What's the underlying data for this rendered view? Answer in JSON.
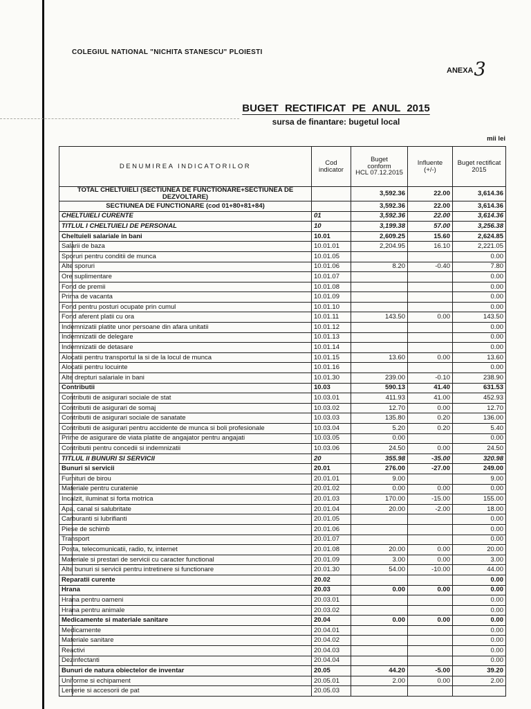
{
  "page": {
    "org_name": "COLEGIUL NATIONAL \"NICHITA STANESCU\" PLOIESTI",
    "anexa_label": "ANEXA",
    "anexa_number": "3",
    "title": "BUGET RECTIFICAT PE ANUL 2015",
    "subtitle": "sursa de finantare: bugetul local",
    "unit_label": "mii lei"
  },
  "table": {
    "headers": {
      "name": "DENUMIREA  INDICATORILOR",
      "code": "Cod\nindicator",
      "budget": "Buget\nconform\nHCL 07.12.2015",
      "influente": "Influente\n(+/-)",
      "rectificat": "Buget rectificat\n2015"
    },
    "rows": [
      {
        "name": "TOTAL CHELTUIELI  (SECTIUNEA DE FUNCTIONARE+SECTIUNEA DE DEZVOLTARE)",
        "code": "",
        "b": "3,592.36",
        "i": "22.00",
        "r": "3,614.36",
        "style": "total"
      },
      {
        "name": "SECTIUNEA DE FUNCTIONARE (cod 01+80+81+84)",
        "code": "",
        "b": "3,592.36",
        "i": "22.00",
        "r": "3,614.36",
        "style": "center"
      },
      {
        "name": "CHELTUIELI CURENTE",
        "code": "01",
        "b": "3,592.36",
        "i": "22.00",
        "r": "3,614.36",
        "style": "italic"
      },
      {
        "name": "TITLUL I  CHELTUIELI DE PERSONAL",
        "code": "10",
        "b": "3,199.38",
        "i": "57.00",
        "r": "3,256.38",
        "style": "italic"
      },
      {
        "name": "Cheltuieli salariale in bani",
        "code": "10.01",
        "b": "2,609.25",
        "i": "15.60",
        "r": "2,624.85",
        "style": "group"
      },
      {
        "name": "Salarii de baza",
        "code": "10.01.01",
        "b": "2,204.95",
        "i": "16.10",
        "r": "2,221.05",
        "style": "item"
      },
      {
        "name": "Sporuri pentru conditii de munca",
        "code": "10.01.05",
        "b": "",
        "i": "",
        "r": "0.00",
        "style": "item"
      },
      {
        "name": "Alte sporuri",
        "code": "10.01.06",
        "b": "8.20",
        "i": "-0.40",
        "r": "7.80",
        "style": "item"
      },
      {
        "name": "Ore suplimentare",
        "code": "10.01.07",
        "b": "",
        "i": "",
        "r": "0.00",
        "style": "item"
      },
      {
        "name": "Fond de premii",
        "code": "10.01.08",
        "b": "",
        "i": "",
        "r": "0.00",
        "style": "item"
      },
      {
        "name": "Prima de vacanta",
        "code": "10.01.09",
        "b": "",
        "i": "",
        "r": "0.00",
        "style": "item"
      },
      {
        "name": "Fond pentru posturi ocupate prin cumul",
        "code": "10.01.10",
        "b": "",
        "i": "",
        "r": "0.00",
        "style": "item"
      },
      {
        "name": "Fond aferent platii cu ora",
        "code": "10.01.11",
        "b": "143.50",
        "i": "0.00",
        "r": "143.50",
        "style": "item"
      },
      {
        "name": "Indemnizatii platite unor persoane din afara unitatii",
        "code": "10.01.12",
        "b": "",
        "i": "",
        "r": "0.00",
        "style": "item"
      },
      {
        "name": "Indemnizatii de delegare",
        "code": "10.01.13",
        "b": "",
        "i": "",
        "r": "0.00",
        "style": "item"
      },
      {
        "name": "Indemnizatii de  detasare",
        "code": "10.01.14",
        "b": "",
        "i": "",
        "r": "0.00",
        "style": "item"
      },
      {
        "name": "Alocatii pentru transportul la si de la locul de munca",
        "code": "10.01.15",
        "b": "13.60",
        "i": "0.00",
        "r": "13.60",
        "style": "item"
      },
      {
        "name": "Alocatii pentru locuinte",
        "code": "10.01.16",
        "b": "",
        "i": "",
        "r": "0.00",
        "style": "item"
      },
      {
        "name": "Alte drepturi salariale in bani",
        "code": "10.01.30",
        "b": "239.00",
        "i": "-0.10",
        "r": "238.90",
        "style": "item"
      },
      {
        "name": "Contributii",
        "code": "10.03",
        "b": "590.13",
        "i": "41.40",
        "r": "631.53",
        "style": "group"
      },
      {
        "name": "Contributii de asigurari sociale de stat",
        "code": "10.03.01",
        "b": "411.93",
        "i": "41.00",
        "r": "452.93",
        "style": "item"
      },
      {
        "name": "Contributii de asigurari de somaj",
        "code": "10.03.02",
        "b": "12.70",
        "i": "0.00",
        "r": "12.70",
        "style": "item"
      },
      {
        "name": "Contributii de asigurari sociale de sanatate",
        "code": "10.03.03",
        "b": "135.80",
        "i": "0.20",
        "r": "136.00",
        "style": "item"
      },
      {
        "name": "Contributii de asigurari pentru accidente de munca si boli profesionale",
        "code": "10.03.04",
        "b": "5.20",
        "i": "0.20",
        "r": "5.40",
        "style": "item"
      },
      {
        "name": "Prime de asigurare de viata platite de angajator pentru angajati",
        "code": "10.03.05",
        "b": "0.00",
        "i": "",
        "r": "0.00",
        "style": "item"
      },
      {
        "name": "Contributii pentru concedii si indemnizatii",
        "code": "10.03.06",
        "b": "24.50",
        "i": "0.00",
        "r": "24.50",
        "style": "item"
      },
      {
        "name": "TITLUL II  BUNURI SI SERVICII",
        "code": "20",
        "b": "355.98",
        "i": "-35.00",
        "r": "320.98",
        "style": "italic"
      },
      {
        "name": "Bunuri si servicii",
        "code": "20.01",
        "b": "276.00",
        "i": "-27.00",
        "r": "249.00",
        "style": "group"
      },
      {
        "name": "Furnituri de birou",
        "code": "20.01.01",
        "b": "9.00",
        "i": "",
        "r": "9.00",
        "style": "item"
      },
      {
        "name": "Materiale pentru curatenie",
        "code": "20.01.02",
        "b": "0.00",
        "i": "0.00",
        "r": "0.00",
        "style": "item"
      },
      {
        "name": "Incalzit, iluminat si forta motrica",
        "code": "20.01.03",
        "b": "170.00",
        "i": "-15.00",
        "r": "155.00",
        "style": "item"
      },
      {
        "name": "Apa, canal si salubritate",
        "code": "20.01.04",
        "b": "20.00",
        "i": "-2.00",
        "r": "18.00",
        "style": "item"
      },
      {
        "name": "Carburanti si lubrifianti",
        "code": "20.01.05",
        "b": "",
        "i": "",
        "r": "0.00",
        "style": "item"
      },
      {
        "name": "Piese de schimb",
        "code": "20.01.06",
        "b": "",
        "i": "",
        "r": "0.00",
        "style": "item"
      },
      {
        "name": "Transport",
        "code": "20.01.07",
        "b": "",
        "i": "",
        "r": "0.00",
        "style": "item"
      },
      {
        "name": "Posta, telecomunicatii, radio, tv, internet",
        "code": "20.01.08",
        "b": "20.00",
        "i": "0.00",
        "r": "20.00",
        "style": "item"
      },
      {
        "name": "Materiale si prestari de servicii cu caracter functional",
        "code": "20.01.09",
        "b": "3.00",
        "i": "0.00",
        "r": "3.00",
        "style": "item"
      },
      {
        "name": "Alte bunuri si servicii pentru intretinere si functionare",
        "code": "20.01.30",
        "b": "54.00",
        "i": "-10.00",
        "r": "44.00",
        "style": "item"
      },
      {
        "name": "Reparatii curente",
        "code": "20.02",
        "b": "",
        "i": "",
        "r": "0.00",
        "style": "group"
      },
      {
        "name": "Hrana",
        "code": "20.03",
        "b": "0.00",
        "i": "0.00",
        "r": "0.00",
        "style": "group"
      },
      {
        "name": "Hrana pentru oameni",
        "code": "20.03.01",
        "b": "",
        "i": "",
        "r": "0.00",
        "style": "item"
      },
      {
        "name": "Hrana pentru animale",
        "code": "20.03.02",
        "b": "",
        "i": "",
        "r": "0.00",
        "style": "item"
      },
      {
        "name": "Medicamente si materiale sanitare",
        "code": "20.04",
        "b": "0.00",
        "i": "0.00",
        "r": "0.00",
        "style": "group"
      },
      {
        "name": "Medicamente",
        "code": "20.04.01",
        "b": "",
        "i": "",
        "r": "0.00",
        "style": "item"
      },
      {
        "name": "Materiale sanitare",
        "code": "20.04.02",
        "b": "",
        "i": "",
        "r": "0.00",
        "style": "item"
      },
      {
        "name": "Reactivi",
        "code": "20.04.03",
        "b": "",
        "i": "",
        "r": "0.00",
        "style": "item"
      },
      {
        "name": "Dezinfectanti",
        "code": "20.04.04",
        "b": "",
        "i": "",
        "r": "0.00",
        "style": "item"
      },
      {
        "name": "Bunuri de natura obiectelor de inventar",
        "code": "20.05",
        "b": "44.20",
        "i": "-5.00",
        "r": "39.20",
        "style": "group"
      },
      {
        "name": "Uniforme si echipament",
        "code": "20.05.01",
        "b": "2.00",
        "i": "0.00",
        "r": "2.00",
        "style": "item"
      },
      {
        "name": "Lenjerie si accesorii de pat",
        "code": "20.05.03",
        "b": "",
        "i": "",
        "r": "",
        "style": "item"
      }
    ]
  }
}
